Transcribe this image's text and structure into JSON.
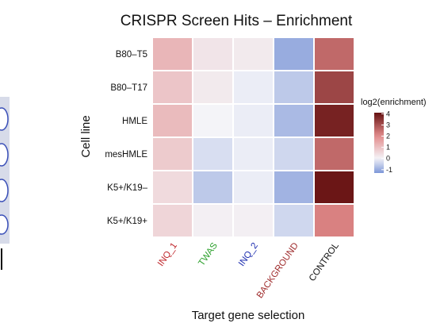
{
  "chart_data": {
    "type": "heatmap",
    "title": "CRISPR Screen Hits – Enrichment",
    "xlabel": "Target gene selection",
    "ylabel": "Cell line",
    "rows": [
      "B80–T5",
      "B80–T17",
      "HMLE",
      "mesHMLE",
      "K5+/K19–",
      "K5+/K19+"
    ],
    "columns": [
      {
        "label": "INQ_1",
        "color": "#c0282d"
      },
      {
        "label": "TWAS",
        "color": "#2ca02c"
      },
      {
        "label": "INQ_2",
        "color": "#1f2fb0"
      },
      {
        "label": "BACKGROUND",
        "color": "#9e2a2b"
      },
      {
        "label": "CONTROL",
        "color": "#111111"
      }
    ],
    "values": [
      [
        1.2,
        0.3,
        0.2,
        -1.0,
        2.6
      ],
      [
        0.9,
        0.2,
        -0.1,
        -0.6,
        3.2
      ],
      [
        1.1,
        0.0,
        -0.1,
        -0.8,
        3.8
      ],
      [
        0.8,
        -0.3,
        -0.1,
        -0.4,
        2.6
      ],
      [
        0.5,
        -0.6,
        -0.1,
        -0.9,
        4.0
      ],
      [
        0.6,
        0.1,
        0.1,
        -0.4,
        2.2
      ]
    ],
    "legend": {
      "title": "log2(enrichment)",
      "ticks": [
        4,
        3,
        2,
        1,
        0,
        -1
      ],
      "range": [
        -1.3,
        4.1
      ],
      "position": "right"
    },
    "colors": {
      "low": "#7c96d8",
      "mid": "#f4f4f8",
      "high": "#651010",
      "cell_border": "#ffffff"
    }
  },
  "background_panel": {
    "present": true
  }
}
